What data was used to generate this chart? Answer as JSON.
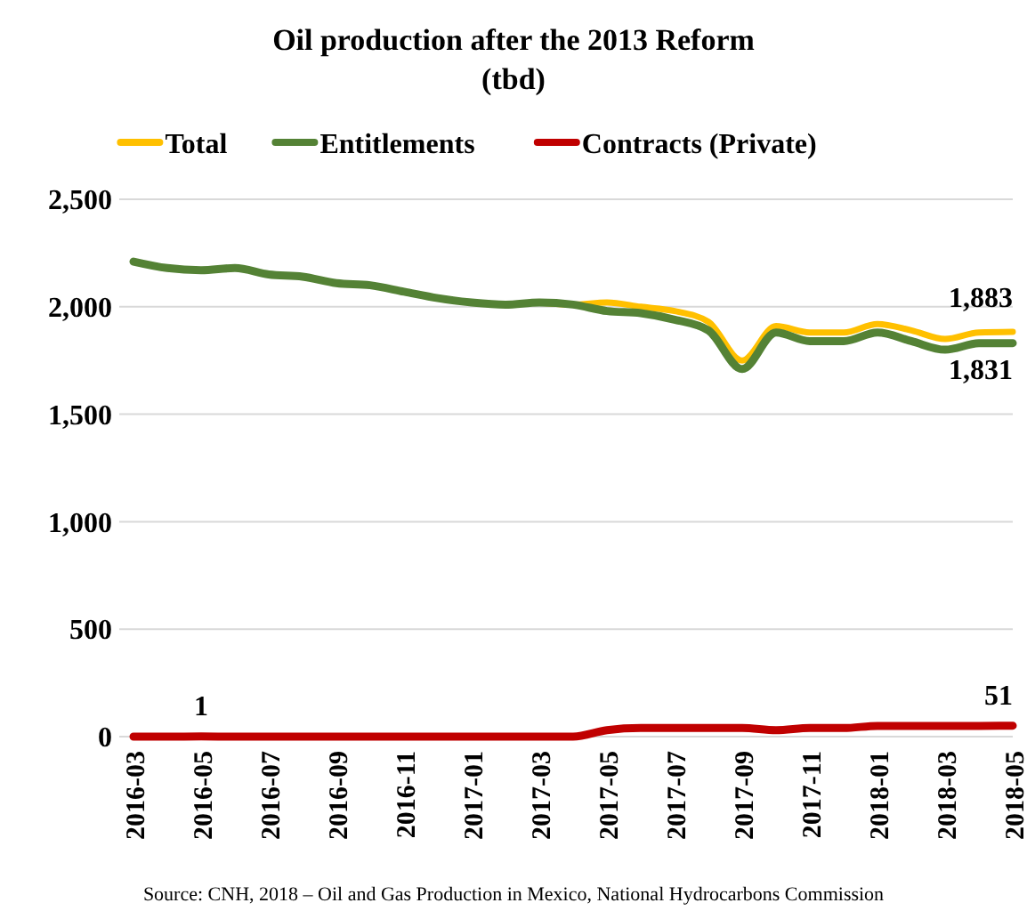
{
  "chart_data": {
    "type": "line",
    "title": "Oil production after the 2013 Reform",
    "subtitle": "(tbd)",
    "categories": [
      "2016-03",
      null,
      "2016-05",
      null,
      "2016-07",
      null,
      "2016-09",
      null,
      "2016-11",
      null,
      "2017-01",
      null,
      "2017-03",
      null,
      "2017-05",
      null,
      "2017-07",
      null,
      "2017-09",
      null,
      "2017-11",
      null,
      "2018-01",
      null,
      "2018-03",
      null,
      "2018-05"
    ],
    "series": [
      {
        "name": "Total",
        "color": "#ffc000",
        "values": [
          null,
          null,
          null,
          null,
          null,
          null,
          null,
          null,
          null,
          null,
          null,
          null,
          2020,
          2010,
          2020,
          2000,
          1980,
          1930,
          1750,
          1910,
          1880,
          1880,
          1920,
          1890,
          1850,
          1880,
          1883
        ],
        "value_labels": [
          null,
          null,
          null,
          null,
          null,
          null,
          null,
          null,
          null,
          null,
          null,
          null,
          null,
          null,
          null,
          null,
          null,
          null,
          null,
          null,
          null,
          null,
          null,
          null,
          null,
          null,
          "1,883"
        ]
      },
      {
        "name": "Entitlements",
        "color": "#548235",
        "values": [
          2210,
          2180,
          2170,
          2180,
          2150,
          2140,
          2110,
          2100,
          2070,
          2040,
          2020,
          2010,
          2020,
          2010,
          1980,
          1970,
          1940,
          1890,
          1710,
          1880,
          1840,
          1840,
          1880,
          1840,
          1800,
          1830,
          1831
        ],
        "value_labels": [
          null,
          null,
          null,
          null,
          null,
          null,
          null,
          null,
          null,
          null,
          null,
          null,
          null,
          null,
          null,
          null,
          null,
          null,
          null,
          null,
          null,
          null,
          null,
          null,
          null,
          null,
          "1,831"
        ]
      },
      {
        "name": "Contracts (Private)",
        "color": "#c00000",
        "values": [
          0,
          0,
          1,
          0,
          0,
          0,
          0,
          0,
          0,
          0,
          0,
          0,
          0,
          0,
          30,
          40,
          40,
          40,
          40,
          30,
          40,
          40,
          50,
          50,
          50,
          50,
          51
        ],
        "value_labels": [
          null,
          null,
          "1",
          null,
          null,
          null,
          null,
          null,
          null,
          null,
          null,
          null,
          null,
          null,
          null,
          null,
          null,
          null,
          null,
          null,
          null,
          null,
          null,
          null,
          null,
          null,
          "51"
        ]
      }
    ],
    "ylim": [
      0,
      2500
    ],
    "yticks": [
      0,
      500,
      {
        "value": 1000,
        "label": "1,000"
      },
      {
        "value": 1500,
        "label": "1,500"
      },
      {
        "value": 2000,
        "label": "2,000"
      },
      {
        "value": 2500,
        "label": "2,500"
      }
    ],
    "grid": "y",
    "legend": "top",
    "marker": "none",
    "line_style": "solid",
    "annotations": [
      "Source: CNH, 2018 – Oil and Gas Production in Mexico, National Hydrocarbons Commission"
    ]
  }
}
